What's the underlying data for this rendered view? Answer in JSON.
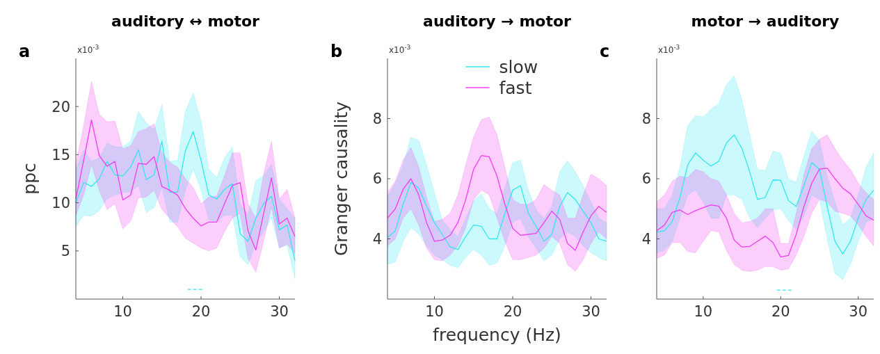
{
  "chart_data": [
    {
      "type": "line",
      "title": "auditory ↔ motor",
      "ylabel": "ppc",
      "annotations": [
        "a",
        "x10$^{-3}$"
      ],
      "x": [
        4,
        5,
        6,
        7,
        8,
        9,
        10,
        11,
        12,
        13,
        14,
        15,
        16,
        17,
        18,
        19,
        20,
        21,
        22,
        23,
        24,
        25,
        26,
        27,
        28,
        29,
        30,
        31,
        32
      ],
      "xlim": [
        4,
        32
      ],
      "xticks": [
        10,
        20,
        30
      ],
      "ylim": [
        0,
        25
      ],
      "yticks": [
        5,
        10,
        15,
        20
      ],
      "legend": false,
      "series": [
        {
          "color": "#33e6ee",
          "values": [
            10,
            12.1,
            11.7,
            12.5,
            14.3,
            12.9,
            12.8,
            13.7,
            15.5,
            12.4,
            12.9,
            16.4,
            11.1,
            11.1,
            15.4,
            17.4,
            14.4,
            10.8,
            10.4,
            11.4,
            12.0,
            6.8,
            6.0,
            8.4,
            9.9,
            10.7,
            7.2,
            7.7,
            4.0
          ],
          "upper": [
            13.4,
            15.5,
            14.3,
            14.7,
            16.2,
            15.8,
            15.8,
            16.4,
            19.5,
            18.3,
            17.6,
            20.2,
            14.3,
            14.4,
            19.5,
            21.4,
            18.5,
            13.5,
            12.6,
            14.7,
            15.8,
            9.9,
            8.7,
            12.3,
            12.8,
            14.0,
            10.4,
            9.4,
            8.4
          ],
          "lower": [
            7.5,
            8.7,
            8.6,
            9.2,
            10.4,
            10.8,
            11.1,
            11.1,
            11.8,
            9.0,
            9.5,
            11.6,
            8.0,
            8.0,
            11.3,
            13.5,
            11.3,
            8.2,
            8.0,
            8.7,
            8.7,
            4.4,
            3.6,
            5.8,
            7.0,
            8.4,
            5.3,
            5.6,
            2.1
          ]
        },
        {
          "color": "#f03cf0",
          "values": [
            10.4,
            14.4,
            18.6,
            14.9,
            13.8,
            14.3,
            10.3,
            10.8,
            14.1,
            14.0,
            14.8,
            11.7,
            11.3,
            10.8,
            9.4,
            8.4,
            7.6,
            8.0,
            8.0,
            9.9,
            11.8,
            12.1,
            7.1,
            5.1,
            8.9,
            12.6,
            7.8,
            8.4,
            6.5
          ],
          "upper": [
            14.0,
            18.0,
            22.6,
            19.2,
            18.4,
            18.5,
            15.6,
            15.9,
            17.4,
            17.7,
            18.2,
            15.2,
            14.2,
            13.7,
            12.5,
            11.6,
            9.9,
            10.6,
            10.7,
            12.8,
            15.2,
            15.2,
            9.9,
            8.4,
            13.0,
            16.4,
            10.4,
            11.4,
            8.4
          ],
          "lower": [
            8.7,
            10.8,
            14.0,
            11.3,
            9.3,
            9.9,
            7.3,
            8.1,
            10.5,
            10.6,
            11.3,
            9.3,
            8.4,
            7.5,
            6.3,
            5.8,
            5.3,
            5.0,
            5.3,
            7.0,
            8.4,
            8.9,
            4.2,
            2.8,
            6.0,
            9.6,
            5.3,
            5.7,
            4.7
          ]
        },
        {
          "type": "line",
          "color": "#33e6ee",
          "line_style": "dashed",
          "x": [
            18.3,
            20.3
          ],
          "values": [
            1,
            1
          ]
        }
      ]
    },
    {
      "type": "line",
      "title": "auditory → motor",
      "ylabel": "Granger causality",
      "xlabel": "frequency (Hz)",
      "annotations": [
        "b",
        "x10$^{-3}$"
      ],
      "x": [
        4,
        5,
        6,
        7,
        8,
        9,
        10,
        11,
        12,
        13,
        14,
        15,
        16,
        17,
        18,
        19,
        20,
        21,
        22,
        23,
        24,
        25,
        26,
        27,
        28,
        29,
        30,
        31,
        32
      ],
      "xlim": [
        4,
        32
      ],
      "xticks": [
        10,
        20,
        30
      ],
      "ylim": [
        2,
        10
      ],
      "yticks": [
        4,
        6,
        8
      ],
      "legend": "top",
      "series": [
        {
          "name": "slow",
          "color": "#33e6ee",
          "values": [
            4.04,
            4.27,
            5.15,
            5.88,
            5.69,
            5.08,
            4.54,
            4.15,
            3.73,
            3.65,
            4.08,
            4.46,
            4.42,
            4.0,
            4.0,
            4.85,
            5.62,
            5.77,
            4.85,
            4.42,
            3.92,
            4.15,
            5.08,
            5.54,
            5.31,
            4.92,
            4.54,
            4.0,
            3.92
          ],
          "upper": [
            5.4,
            5.85,
            6.46,
            7.38,
            7.27,
            6.46,
            5.54,
            4.62,
            4.31,
            4.08,
            4.69,
            5.27,
            5.5,
            5.0,
            4.85,
            5.69,
            6.54,
            6.62,
            5.62,
            4.96,
            4.69,
            5.08,
            6.23,
            6.6,
            6.23,
            5.77,
            5.23,
            4.69,
            4.54
          ],
          "lower": [
            3.15,
            3.23,
            3.92,
            4.38,
            4.15,
            3.77,
            3.46,
            3.31,
            3.12,
            3.04,
            3.38,
            3.65,
            3.46,
            3.12,
            3.19,
            3.77,
            4.54,
            4.69,
            4.08,
            3.69,
            3.27,
            3.46,
            4.0,
            4.23,
            4.08,
            3.77,
            3.54,
            3.38,
            3.27
          ]
        },
        {
          "name": "fast",
          "color": "#f03cf0",
          "values": [
            4.69,
            5.0,
            5.65,
            6.0,
            5.46,
            4.54,
            3.92,
            3.96,
            4.12,
            4.54,
            5.31,
            6.31,
            6.77,
            6.73,
            6.08,
            5.15,
            4.35,
            4.12,
            4.15,
            4.19,
            4.54,
            4.92,
            4.65,
            3.85,
            3.62,
            4.23,
            4.77,
            5.08,
            4.88
          ],
          "upper": [
            5.54,
            5.92,
            6.62,
            7.04,
            6.38,
            5.38,
            4.58,
            4.65,
            4.85,
            5.46,
            6.46,
            7.38,
            7.96,
            8.06,
            7.46,
            6.38,
            5.31,
            5.15,
            5.15,
            5.31,
            5.81,
            5.62,
            5.46,
            4.69,
            4.69,
            5.46,
            6.15,
            6.0,
            5.77
          ],
          "lower": [
            3.77,
            4.0,
            4.69,
            5.0,
            4.46,
            3.69,
            3.31,
            3.27,
            3.46,
            3.77,
            4.38,
            5.31,
            5.62,
            5.46,
            4.69,
            3.92,
            3.31,
            3.31,
            3.38,
            3.46,
            3.69,
            4.08,
            3.85,
            3.15,
            2.92,
            3.31,
            3.85,
            4.23,
            4.0
          ]
        }
      ]
    },
    {
      "type": "line",
      "title": "motor → auditory",
      "annotations": [
        "c",
        "x10$^{-3}$"
      ],
      "x": [
        4,
        5,
        6,
        7,
        8,
        9,
        10,
        11,
        12,
        13,
        14,
        15,
        16,
        17,
        18,
        19,
        20,
        21,
        22,
        23,
        24,
        25,
        26,
        27,
        28,
        29,
        30,
        31,
        32
      ],
      "xlim": [
        4,
        32
      ],
      "xticks": [
        10,
        20,
        30
      ],
      "ylim": [
        2,
        10
      ],
      "yticks": [
        4,
        6,
        8
      ],
      "legend": false,
      "series": [
        {
          "color": "#33e6ee",
          "values": [
            4.23,
            4.27,
            4.58,
            5.38,
            6.46,
            6.86,
            6.62,
            6.42,
            6.58,
            7.19,
            7.46,
            7.0,
            6.23,
            5.31,
            5.38,
            5.96,
            5.95,
            5.27,
            5.08,
            5.77,
            6.54,
            6.31,
            5.08,
            3.92,
            3.5,
            3.92,
            4.69,
            5.31,
            5.62
          ],
          "upper": [
            5.0,
            5.0,
            5.46,
            6.38,
            7.77,
            8.09,
            8.06,
            8.31,
            8.5,
            9.12,
            9.42,
            8.62,
            7.46,
            6.31,
            6.27,
            6.92,
            6.85,
            6.0,
            5.88,
            6.77,
            7.58,
            7.27,
            6.08,
            5.23,
            4.46,
            4.69,
            5.46,
            6.38,
            6.85
          ],
          "lower": [
            3.54,
            3.62,
            3.92,
            4.69,
            5.46,
            5.62,
            5.23,
            4.69,
            4.69,
            5.46,
            5.46,
            5.31,
            4.69,
            4.38,
            4.69,
            4.96,
            5.0,
            4.62,
            4.31,
            4.77,
            5.46,
            5.31,
            4.0,
            2.85,
            2.65,
            3.15,
            3.92,
            4.54,
            4.69
          ]
        },
        {
          "color": "#f03cf0",
          "values": [
            4.27,
            4.46,
            4.88,
            4.96,
            4.81,
            4.94,
            5.04,
            5.13,
            5.09,
            4.69,
            3.96,
            3.73,
            3.75,
            3.92,
            4.09,
            3.88,
            3.4,
            3.45,
            4.15,
            5.08,
            5.85,
            6.32,
            6.35,
            6.0,
            5.69,
            5.5,
            5.15,
            4.77,
            4.62
          ],
          "upper": [
            5.23,
            5.46,
            5.92,
            6.08,
            6.04,
            6.31,
            6.23,
            6.0,
            5.92,
            5.46,
            4.85,
            4.54,
            4.58,
            4.69,
            5.0,
            5.0,
            3.85,
            3.85,
            4.85,
            6.15,
            7.0,
            7.31,
            7.46,
            7.0,
            6.62,
            6.31,
            5.85,
            5.54,
            5.31
          ],
          "lower": [
            3.35,
            3.46,
            3.88,
            3.88,
            3.58,
            3.54,
            3.92,
            4.27,
            4.23,
            3.62,
            3.15,
            2.96,
            2.92,
            2.96,
            3.08,
            3.08,
            2.96,
            3.0,
            3.46,
            4.08,
            4.85,
            5.31,
            5.23,
            4.92,
            4.85,
            4.77,
            4.46,
            4.08,
            3.77
          ]
        },
        {
          "type": "line",
          "color": "#33e6ee",
          "line_style": "dashed",
          "x": [
            19.5,
            21.5
          ],
          "values": [
            2.3,
            2.3
          ]
        }
      ]
    }
  ]
}
